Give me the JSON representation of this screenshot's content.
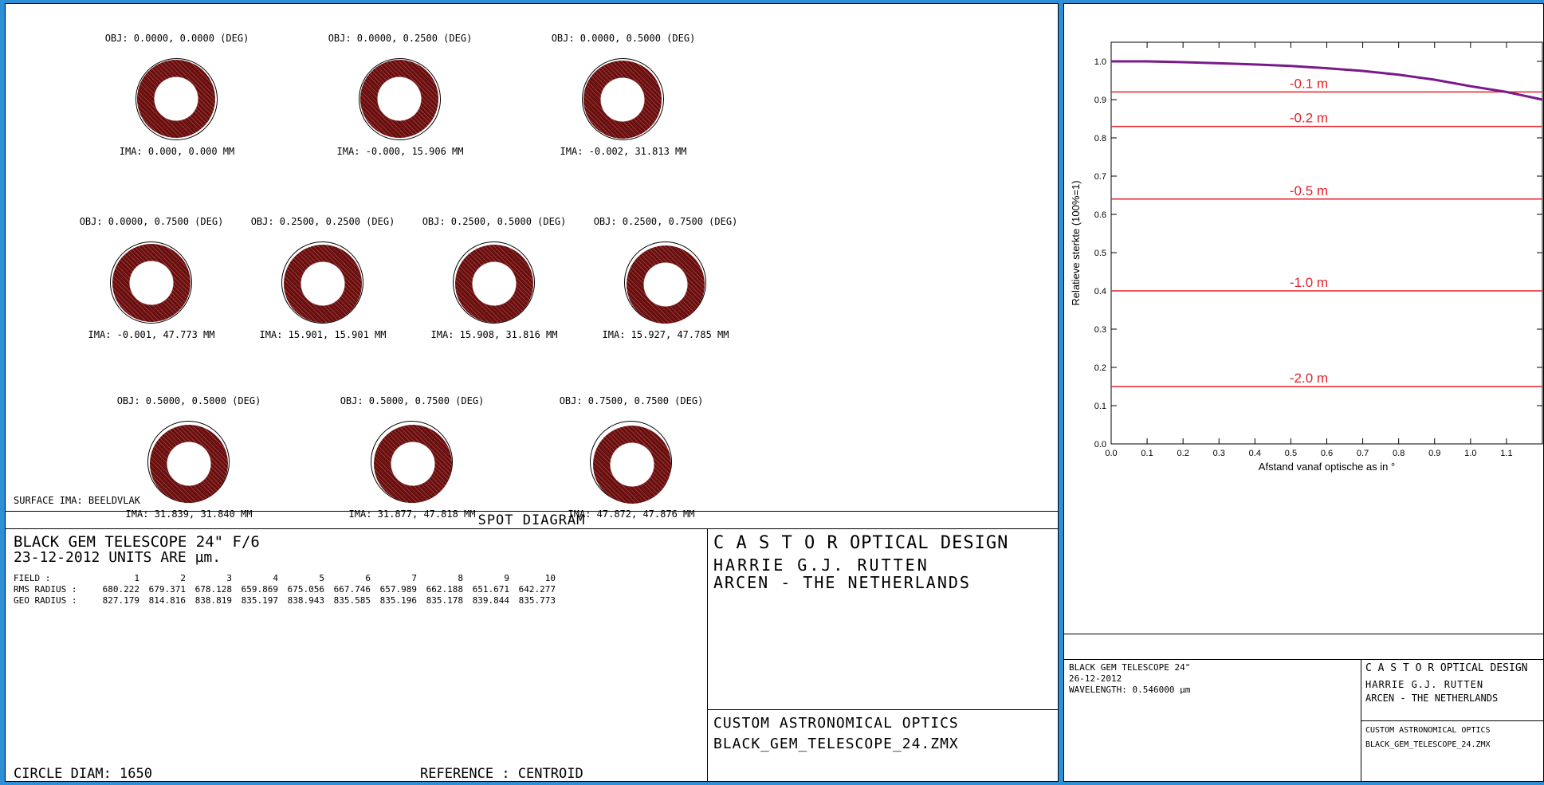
{
  "spots": [
    {
      "obj": "OBJ: 0.0000, 0.0000 (DEG)",
      "ima": "IMA: 0.000, 0.000 MM"
    },
    {
      "obj": "OBJ: 0.0000, 0.2500 (DEG)",
      "ima": "IMA: -0.000, 15.906 MM"
    },
    {
      "obj": "OBJ: 0.0000, 0.5000 (DEG)",
      "ima": "IMA: -0.002, 31.813 MM"
    },
    {
      "obj": "OBJ: 0.0000, 0.7500 (DEG)",
      "ima": "IMA: -0.001, 47.773 MM"
    },
    {
      "obj": "OBJ: 0.2500, 0.2500 (DEG)",
      "ima": "IMA: 15.901, 15.901 MM"
    },
    {
      "obj": "OBJ: 0.2500, 0.5000 (DEG)",
      "ima": "IMA: 15.908, 31.816 MM"
    },
    {
      "obj": "OBJ: 0.2500, 0.7500 (DEG)",
      "ima": "IMA: 15.927, 47.785 MM"
    },
    {
      "obj": "OBJ: 0.5000, 0.5000 (DEG)",
      "ima": "IMA: 31.839, 31.840 MM"
    },
    {
      "obj": "OBJ: 0.5000, 0.7500 (DEG)",
      "ima": "IMA: 31.877, 47.818 MM"
    },
    {
      "obj": "OBJ: 0.7500, 0.7500 (DEG)",
      "ima": "IMA: 47.872, 47.876 MM"
    }
  ],
  "surface": "SURFACE IMA: BEELDVLAK",
  "diagram_title": "SPOT DIAGRAM",
  "info": {
    "title": "BLACK GEM TELESCOPE 24\" F/6",
    "date_units": "23-12-2012  UNITS ARE µm.",
    "field_label": "FIELD  :",
    "field_values": [
      "1",
      "2",
      "3",
      "4",
      "5",
      "6",
      "7",
      "8",
      "9",
      "10"
    ],
    "rms_label": "RMS RADIUS :",
    "rms_values": [
      "680.222",
      "679.371",
      "678.128",
      "659.869",
      "675.056",
      "667.746",
      "657.989",
      "662.188",
      "651.671",
      "642.277"
    ],
    "geo_label": "GEO RADIUS :",
    "geo_values": [
      "827.179",
      "814.816",
      "838.819",
      "835.197",
      "838.943",
      "835.585",
      "835.196",
      "835.178",
      "839.844",
      "835.773"
    ],
    "circle": "CIRCLE DIAM: 1650",
    "reference": "REFERENCE   : CENTROID"
  },
  "company": {
    "name": "C A S T O R   OPTICAL DESIGN",
    "person": "HARRIE G.J. RUTTEN",
    "location": "ARCEN - THE NETHERLANDS",
    "product": "CUSTOM ASTRONOMICAL OPTICS",
    "file": "BLACK_GEM_TELESCOPE_24.ZMX"
  },
  "right_info": {
    "title": "BLACK GEM TELESCOPE 24\"",
    "date": "26-12-2012",
    "wavelength": "WAVELENGTH: 0.546000 µm"
  },
  "right_company": {
    "name": "C A S T O R   OPTICAL DESIGN",
    "person": "HARRIE G.J. RUTTEN",
    "location": "ARCEN - THE NETHERLANDS",
    "product": "CUSTOM ASTRONOMICAL OPTICS",
    "file": "BLACK_GEM_TELESCOPE_24.ZMX"
  },
  "chart_data": {
    "type": "line",
    "xlabel": "Afstand vanaf optische as in °",
    "ylabel": "Relatieve sterkte (100%=1)",
    "xlim": [
      0,
      1.2
    ],
    "ylim": [
      0,
      1.05
    ],
    "xticks": [
      "0.0",
      "0.1",
      "0.2",
      "0.3",
      "0.4",
      "0.5",
      "0.6",
      "0.7",
      "0.8",
      "0.9",
      "1.0",
      "1.1"
    ],
    "yticks": [
      "0.0",
      "0.1",
      "0.2",
      "0.3",
      "0.4",
      "0.5",
      "0.6",
      "0.7",
      "0.8",
      "0.9",
      "1.0"
    ],
    "curve": {
      "x": [
        0,
        0.1,
        0.2,
        0.3,
        0.4,
        0.5,
        0.6,
        0.7,
        0.8,
        0.9,
        1.0,
        1.1,
        1.2
      ],
      "y": [
        1.0,
        1.0,
        0.998,
        0.995,
        0.992,
        0.988,
        0.982,
        0.975,
        0.965,
        0.952,
        0.935,
        0.92,
        0.9
      ],
      "color": "#7a1a8a"
    },
    "reference_lines": [
      {
        "label": "-0.1 m",
        "y": 0.92
      },
      {
        "label": "-0.2 m",
        "y": 0.83
      },
      {
        "label": "-0.5 m",
        "y": 0.64
      },
      {
        "label": "-1.0 m",
        "y": 0.4
      },
      {
        "label": "-2.0 m",
        "y": 0.15
      }
    ],
    "line_color": "#e8202a",
    "label_color": "#e8202a"
  }
}
